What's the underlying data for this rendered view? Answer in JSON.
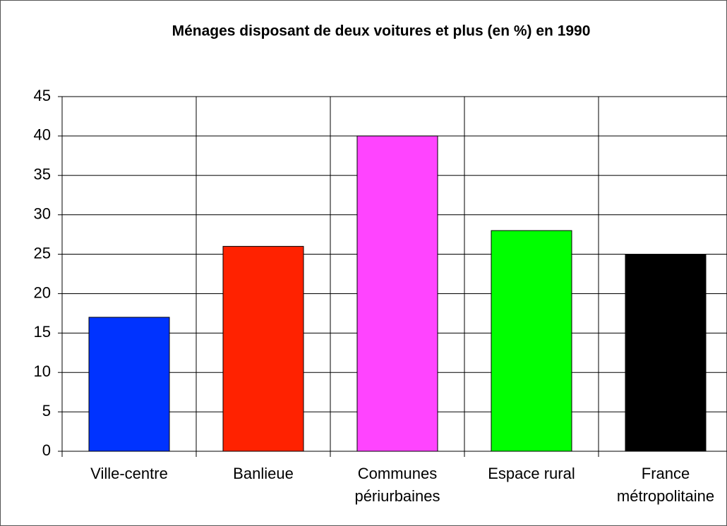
{
  "chart_data": {
    "type": "bar",
    "title": "Ménages disposant de deux  voitures et plus (en %) en 1990",
    "categories": [
      "Ville-centre",
      "Banlieue",
      "Communes périurbaines",
      "Espace rural",
      "France métropolitaine"
    ],
    "values": [
      17,
      26,
      40,
      28,
      25
    ],
    "colors": [
      "#0033ff",
      "#ff2200",
      "#ff44ff",
      "#00ff00",
      "#000000"
    ],
    "ylim": [
      0,
      45
    ],
    "yticks": [
      0,
      5,
      10,
      15,
      20,
      25,
      30,
      35,
      40,
      45
    ],
    "grid": true
  }
}
